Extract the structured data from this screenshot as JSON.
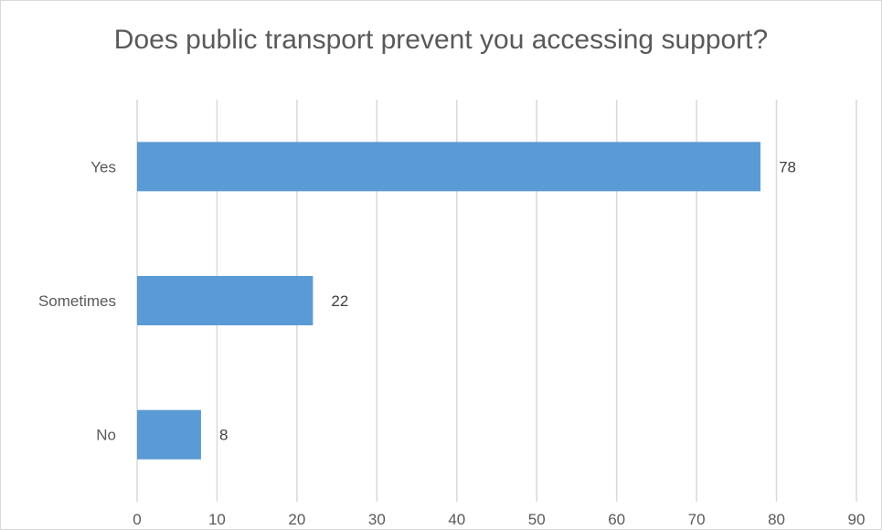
{
  "chart_data": {
    "type": "bar",
    "orientation": "horizontal",
    "title": "Does public transport prevent you accessing support?",
    "categories": [
      "Yes",
      "Sometimes",
      "No"
    ],
    "values": [
      78,
      22,
      8
    ],
    "xlim": [
      0,
      90
    ],
    "xticks": [
      "0",
      "10",
      "20",
      "30",
      "40",
      "50",
      "60",
      "70",
      "80",
      "90"
    ],
    "xlabel": "",
    "ylabel": "",
    "grid": "vertical",
    "legend": "none",
    "bar_color": "#5b9bd5",
    "gridline_color": "#d9d9d9"
  }
}
